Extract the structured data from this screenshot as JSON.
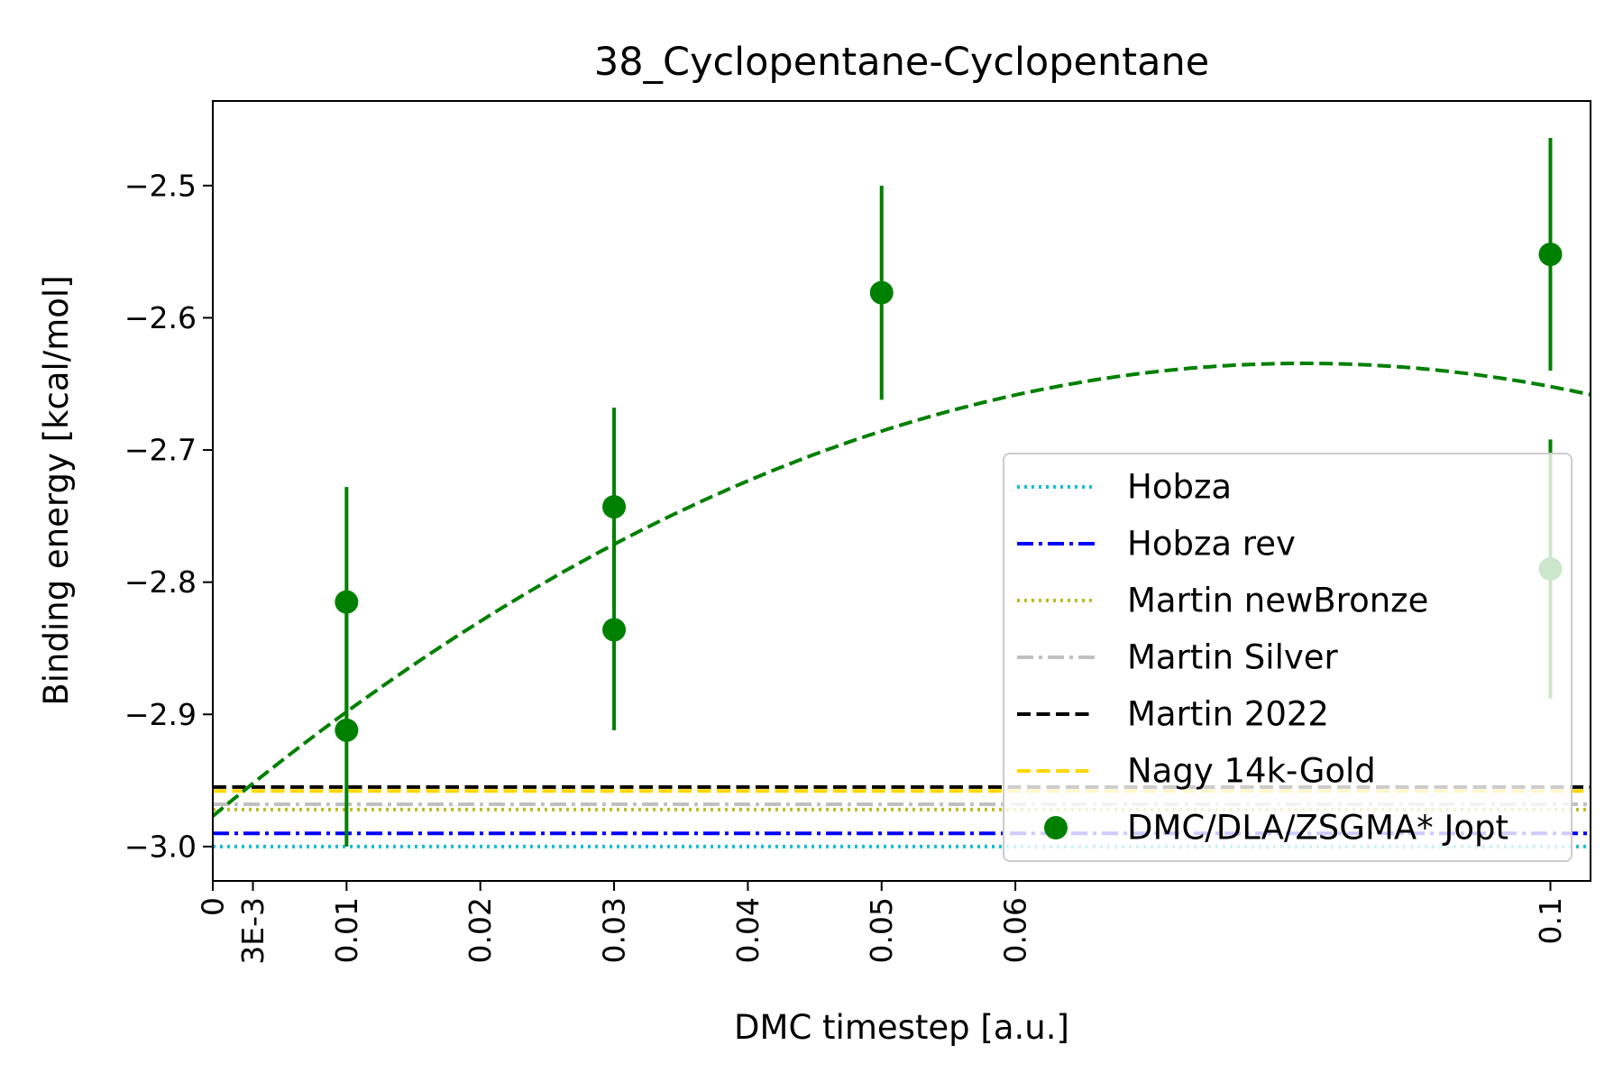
{
  "chart_data": {
    "type": "scatter",
    "title": "38_Cyclopentane-Cyclopentane",
    "xlabel": "DMC timestep [a.u.]",
    "ylabel": "Binding energy [kcal/mol]",
    "xlim": [
      0,
      0.103
    ],
    "ylim": [
      -3.026,
      -2.436
    ],
    "x_ticks": [
      {
        "value": 0,
        "label": "0"
      },
      {
        "value": 0.003,
        "label": "3E-3"
      },
      {
        "value": 0.01,
        "label": "0.01"
      },
      {
        "value": 0.02,
        "label": "0.02"
      },
      {
        "value": 0.03,
        "label": "0.03"
      },
      {
        "value": 0.04,
        "label": "0.04"
      },
      {
        "value": 0.05,
        "label": "0.05"
      },
      {
        "value": 0.06,
        "label": "0.06"
      },
      {
        "value": 0.1,
        "label": "0.1"
      }
    ],
    "y_ticks": [
      {
        "value": -2.5,
        "label": "−2.5"
      },
      {
        "value": -2.6,
        "label": "−2.6"
      },
      {
        "value": -2.7,
        "label": "−2.7"
      },
      {
        "value": -2.8,
        "label": "−2.8"
      },
      {
        "value": -2.9,
        "label": "−2.9"
      },
      {
        "value": -3.0,
        "label": "−3.0"
      }
    ],
    "grid": false,
    "legend_position": "lower right",
    "reference_lines": [
      {
        "name": "Hobza",
        "y": -3.0,
        "color": "#17becf",
        "style": "dotted"
      },
      {
        "name": "Hobza rev",
        "y": -2.99,
        "color": "#0000ff",
        "style": "dashdot"
      },
      {
        "name": "Martin newBronze",
        "y": -2.972,
        "color": "#bcbd22",
        "style": "dotted"
      },
      {
        "name": "Martin Silver",
        "y": -2.968,
        "color": "#c0c0c0",
        "style": "dashdot"
      },
      {
        "name": "Martin 2022",
        "y": -2.955,
        "color": "#000000",
        "style": "dashed"
      },
      {
        "name": "Nagy 14k-Gold",
        "y": -2.958,
        "color": "#ffd700",
        "style": "dashed"
      }
    ],
    "series": [
      {
        "name": "DMC/DLA/ZSGMA* Jopt",
        "color": "#008000",
        "points": [
          {
            "x": 0.01,
            "y": -2.815,
            "yerr": 0.087
          },
          {
            "x": 0.01,
            "y": -2.912,
            "yerr": 0.088
          },
          {
            "x": 0.03,
            "y": -2.743,
            "yerr": 0.075
          },
          {
            "x": 0.03,
            "y": -2.836,
            "yerr": 0.076
          },
          {
            "x": 0.05,
            "y": -2.581,
            "yerr": 0.081
          },
          {
            "x": 0.1,
            "y": -2.552,
            "yerr": 0.088
          },
          {
            "x": 0.1,
            "y": -2.79,
            "yerr": 0.098
          }
        ],
        "fit": {
          "a": -2.977,
          "b": 8.4,
          "c": -51.5
        }
      }
    ]
  }
}
